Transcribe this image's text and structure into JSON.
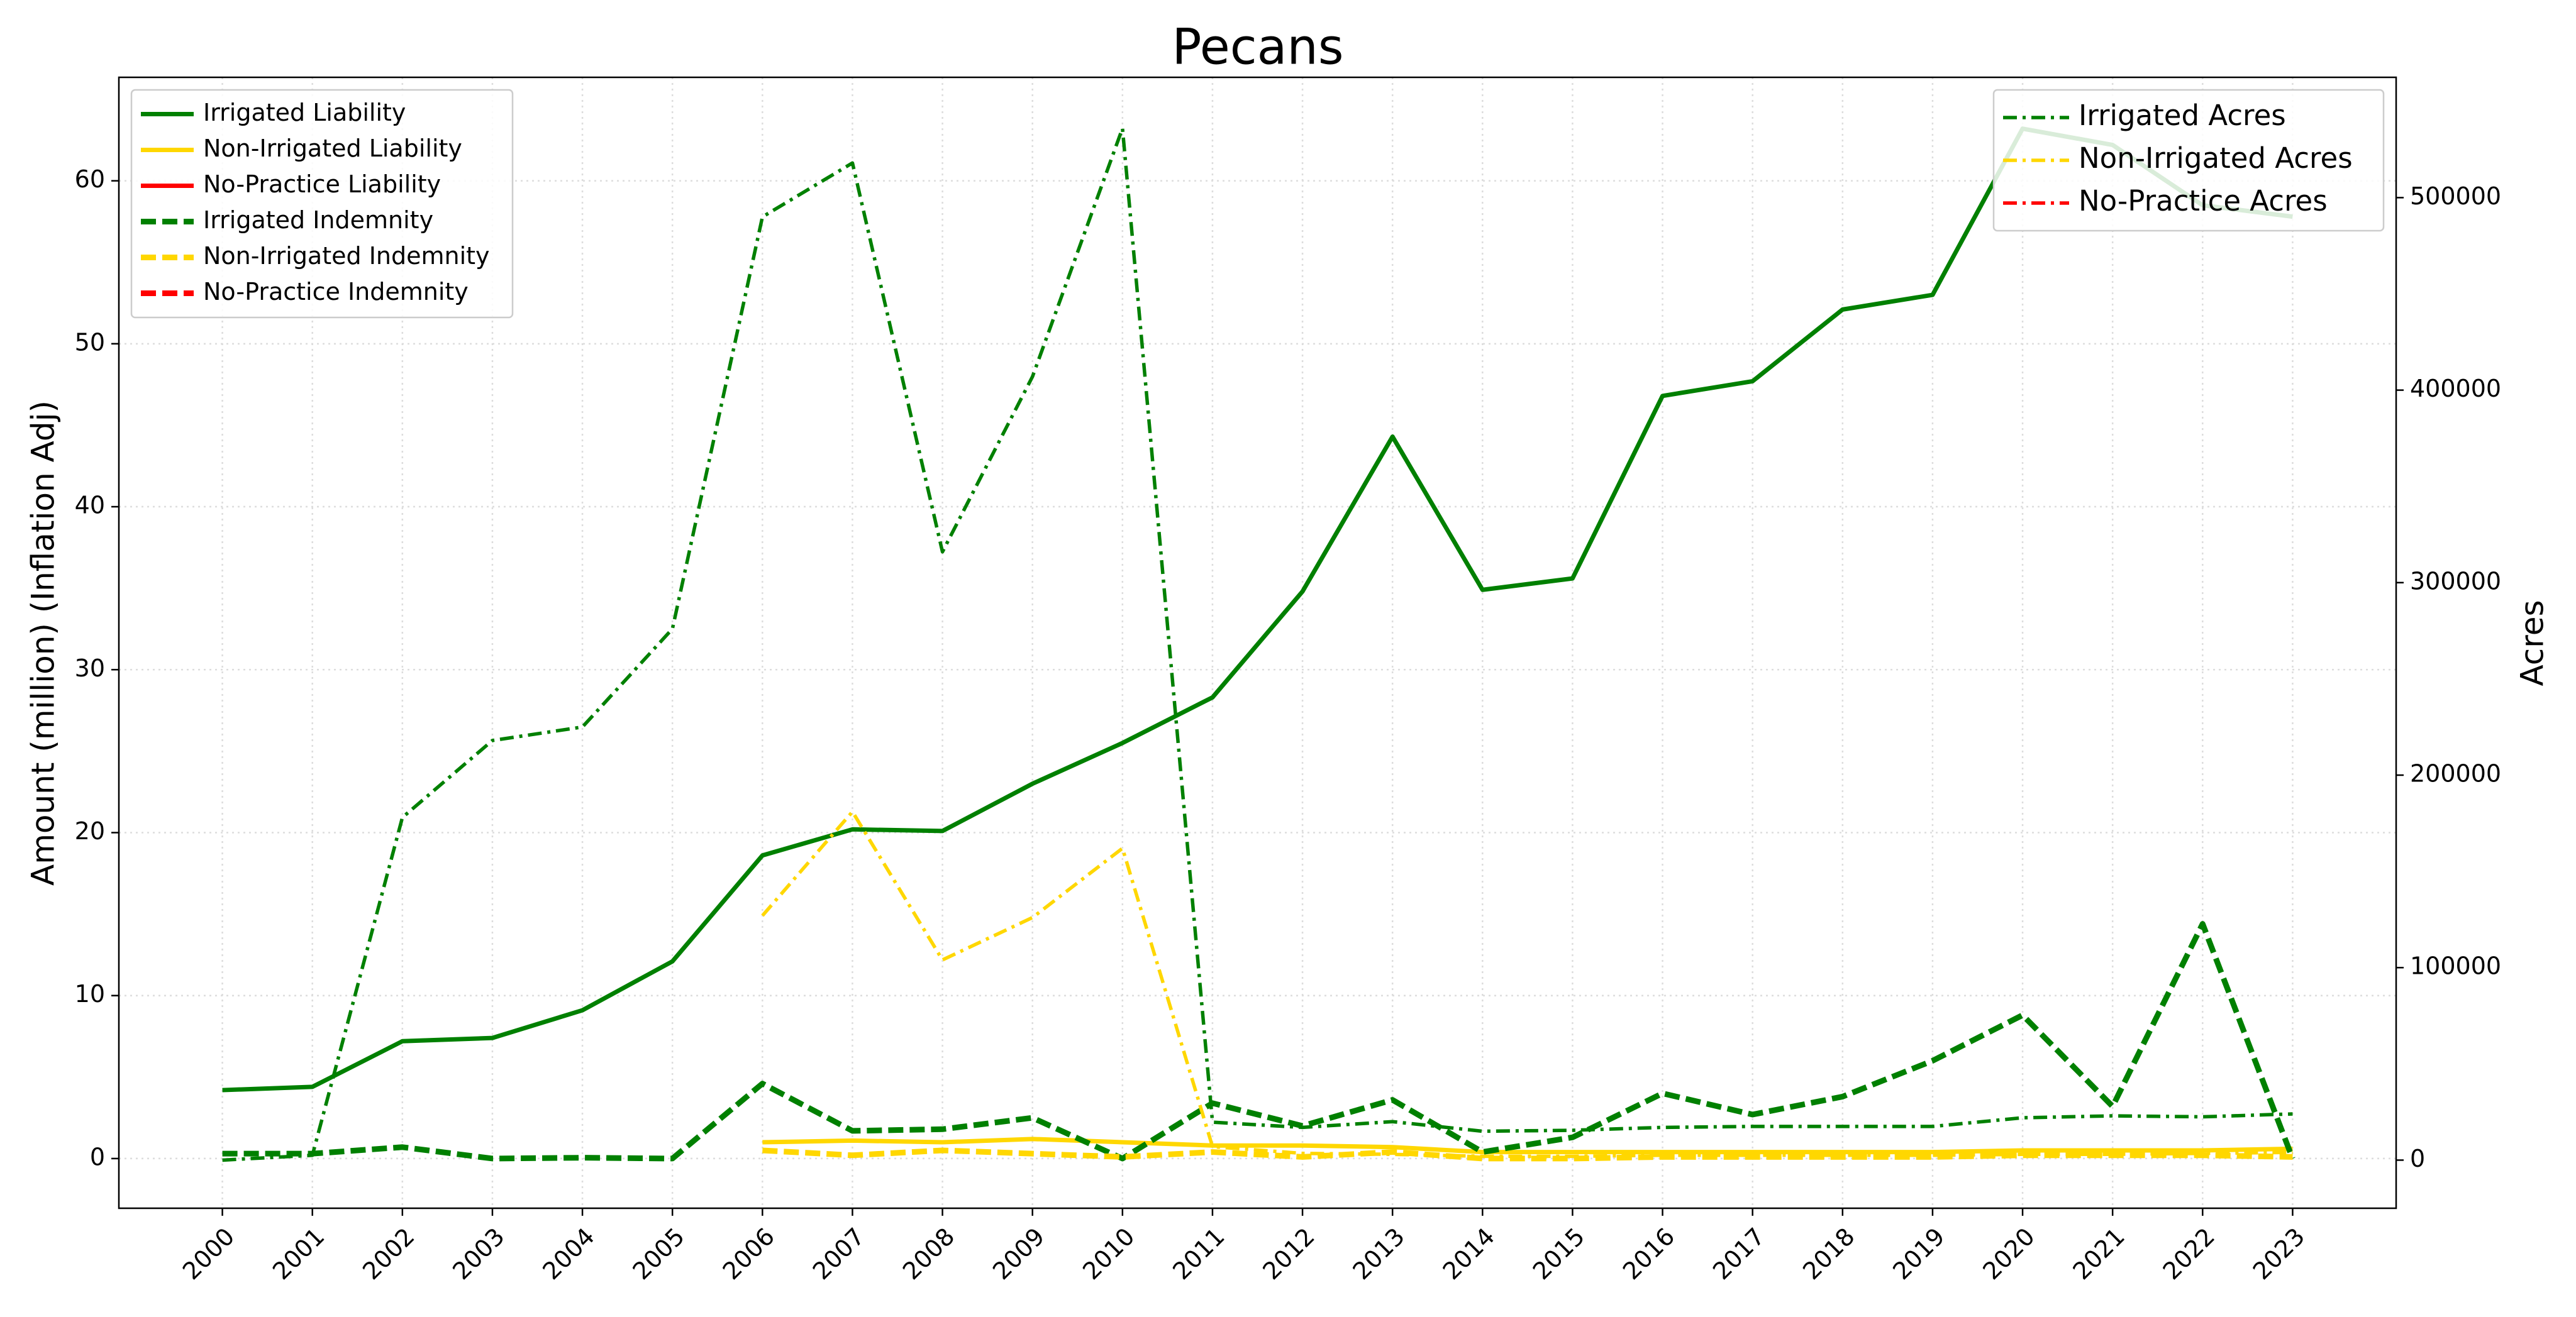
{
  "chart_data": {
    "type": "line",
    "title": "Pecans",
    "ylabel": "Amount (million) (Inflation Adj)",
    "y2label": "Acres",
    "x": [
      2000,
      2001,
      2002,
      2003,
      2004,
      2005,
      2006,
      2007,
      2008,
      2009,
      2010,
      2011,
      2012,
      2013,
      2014,
      2015,
      2016,
      2017,
      2018,
      2019,
      2020,
      2021,
      2022,
      2023
    ],
    "xlim": [
      1998.85,
      2024.15
    ],
    "xticks": [
      2000,
      2001,
      2002,
      2003,
      2004,
      2005,
      2006,
      2007,
      2008,
      2009,
      2010,
      2011,
      2012,
      2013,
      2014,
      2015,
      2016,
      2017,
      2018,
      2019,
      2020,
      2021,
      2022,
      2023
    ],
    "ylim": [
      -3.05,
      66.35
    ],
    "yticks": [
      0,
      10,
      20,
      30,
      40,
      50,
      60
    ],
    "y2lim": [
      -25000,
      562500
    ],
    "y2ticks": [
      0,
      100000,
      200000,
      300000,
      400000,
      500000
    ],
    "grid": true,
    "legend": "upper left",
    "legend2": "upper right",
    "series": [
      {
        "name": "Irrigated Liability",
        "color": "#008000",
        "style": "solid",
        "values": [
          4.2,
          4.4,
          7.2,
          7.4,
          9.1,
          12.1,
          18.6,
          20.2,
          20.1,
          23.0,
          25.5,
          28.3,
          34.8,
          44.3,
          34.9,
          35.6,
          46.8,
          47.7,
          52.1,
          53.0,
          63.2,
          62.2,
          58.5,
          57.8
        ]
      },
      {
        "name": "Non-Irrigated Liability",
        "color": "#ffd700",
        "style": "solid",
        "values": [
          null,
          null,
          null,
          null,
          null,
          null,
          1.0,
          1.1,
          1.0,
          1.2,
          1.0,
          0.8,
          0.8,
          0.7,
          0.4,
          0.4,
          0.4,
          0.4,
          0.4,
          0.4,
          0.5,
          0.5,
          0.5,
          0.6
        ]
      },
      {
        "name": "No-Practice Liability",
        "color": "#ff0000",
        "style": "solid",
        "values": [
          null,
          null,
          null,
          null,
          null,
          null,
          null,
          null,
          null,
          null,
          null,
          null,
          null,
          null,
          null,
          null,
          null,
          null,
          null,
          null,
          null,
          null,
          null,
          null
        ]
      },
      {
        "name": "Irrigated Indemnity",
        "color": "#008000",
        "style": "dashed",
        "values": [
          0.3,
          0.3,
          0.7,
          0.0,
          0.05,
          0.0,
          4.6,
          1.7,
          1.8,
          2.5,
          0.0,
          3.4,
          2.0,
          3.6,
          0.4,
          1.3,
          4.0,
          2.7,
          3.8,
          6.0,
          8.8,
          3.2,
          14.4,
          0.0
        ]
      },
      {
        "name": "Non-Irrigated Indemnity",
        "color": "#ffd700",
        "style": "dashed",
        "values": [
          null,
          null,
          null,
          null,
          null,
          null,
          0.5,
          0.2,
          0.5,
          0.3,
          0.1,
          0.4,
          0.1,
          0.4,
          0.0,
          0.0,
          0.1,
          0.1,
          0.1,
          0.1,
          0.2,
          0.2,
          0.2,
          0.1
        ]
      },
      {
        "name": "No-Practice Indemnity",
        "color": "#ff0000",
        "style": "dashed",
        "values": [
          null,
          null,
          null,
          null,
          null,
          null,
          null,
          null,
          null,
          null,
          null,
          null,
          null,
          null,
          null,
          null,
          null,
          null,
          null,
          null,
          null,
          null,
          null,
          null
        ]
      },
      {
        "name": "Irrigated Acres",
        "color": "#008000",
        "style": "dashdot",
        "axis": "y2",
        "values": [
          0,
          2500,
          178000,
          218000,
          225000,
          276000,
          490000,
          518000,
          316000,
          407000,
          536000,
          19700,
          17000,
          20000,
          15000,
          15500,
          17000,
          17500,
          17500,
          17500,
          22000,
          23000,
          22500,
          24000
        ]
      },
      {
        "name": "Non-Irrigated Acres",
        "color": "#ffd700",
        "style": "dashdot",
        "axis": "y2",
        "values": [
          null,
          null,
          null,
          null,
          null,
          null,
          127000,
          181000,
          104000,
          126000,
          162000,
          7000,
          3500,
          3000,
          2000,
          2000,
          2500,
          2500,
          2500,
          2500,
          3000,
          3000,
          3500,
          4000
        ]
      },
      {
        "name": "No-Practice Acres",
        "color": "#ff0000",
        "style": "dashdot",
        "axis": "y2",
        "values": [
          null,
          null,
          null,
          null,
          null,
          null,
          null,
          null,
          null,
          null,
          null,
          null,
          null,
          null,
          null,
          null,
          null,
          null,
          null,
          null,
          null,
          null,
          null,
          null
        ]
      }
    ]
  }
}
